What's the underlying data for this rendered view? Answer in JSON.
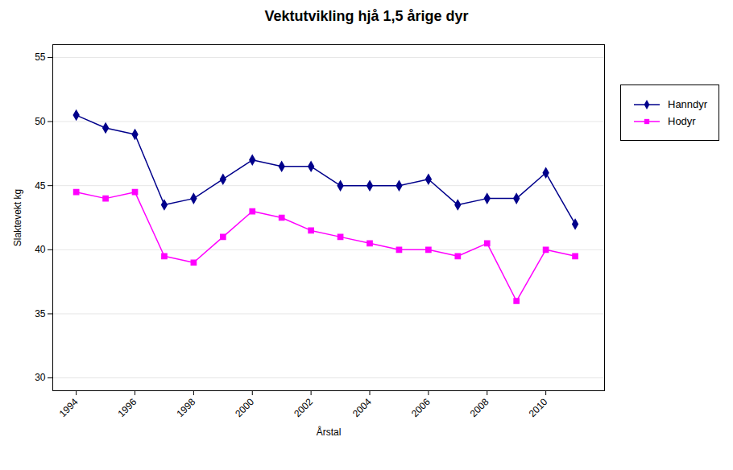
{
  "chart_data": {
    "type": "line",
    "title": "Vektutvikling hjå 1,5 årige dyr",
    "xlabel": "Årstal",
    "ylabel": "Slaktevekt kg",
    "x": [
      1994,
      1995,
      1996,
      1997,
      1998,
      1999,
      2000,
      2001,
      2002,
      2003,
      2004,
      2005,
      2006,
      2007,
      2008,
      2009,
      2010,
      2011
    ],
    "series": [
      {
        "name": "Hanndyr",
        "color": "#00008B",
        "marker": "diamond",
        "values": [
          50.5,
          49.5,
          49.0,
          43.5,
          44.0,
          45.5,
          47.0,
          46.5,
          46.5,
          45.0,
          45.0,
          45.0,
          45.5,
          43.5,
          44.0,
          44.0,
          46.0,
          42.0
        ]
      },
      {
        "name": "Hodyr",
        "color": "#FF00FF",
        "marker": "square",
        "values": [
          44.5,
          44.0,
          44.5,
          39.5,
          39.0,
          41.0,
          43.0,
          42.5,
          41.5,
          41.0,
          40.5,
          40.0,
          40.0,
          39.5,
          40.5,
          36.0,
          40.0,
          39.5
        ]
      }
    ],
    "xlim": [
      1993.2,
      2012.0
    ],
    "xticks": [
      1994,
      1996,
      1998,
      2000,
      2002,
      2004,
      2006,
      2008,
      2010
    ],
    "ylim": [
      29,
      56
    ],
    "yticks": [
      30,
      35,
      40,
      45,
      50,
      55
    ],
    "grid": "y",
    "legend": "right"
  }
}
